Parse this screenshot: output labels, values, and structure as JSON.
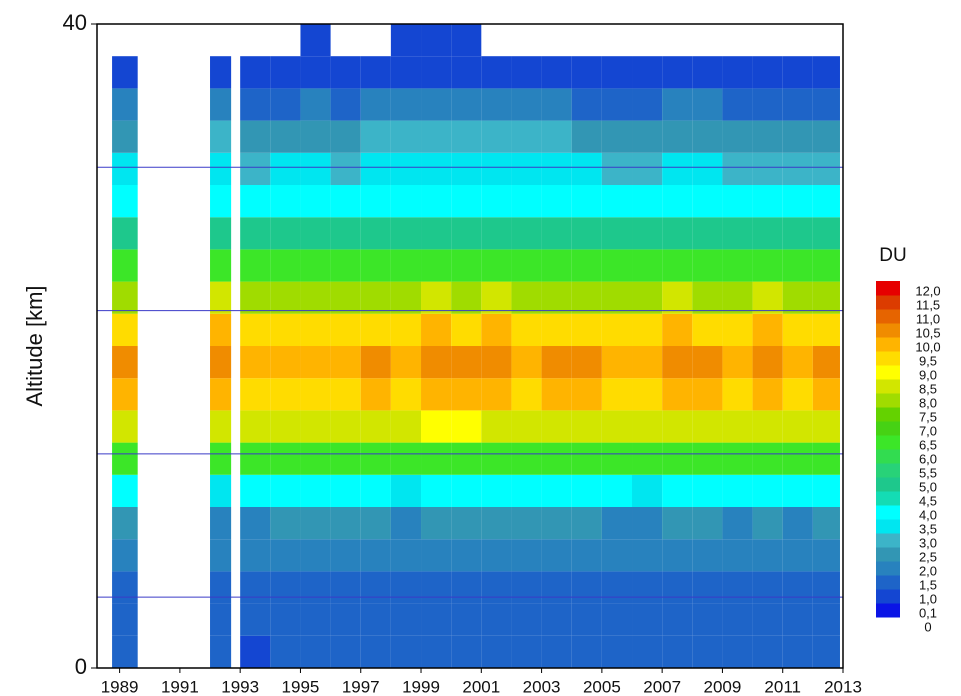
{
  "chart_data": {
    "type": "heatmap",
    "y_label": "Altitude [km]",
    "colorbar_title": "DU",
    "xlim": [
      1988.25,
      2013
    ],
    "xticks": [
      1989,
      1991,
      1993,
      1995,
      1997,
      1999,
      2001,
      2003,
      2005,
      2007,
      2009,
      2011,
      2013
    ],
    "ylim": [
      0,
      40
    ],
    "yticks": [
      0,
      40
    ],
    "grid_lines": [
      4.4,
      13.3,
      22.2,
      31.1
    ],
    "grid_color": "#3a3ac8",
    "y_bins": [
      0,
      2,
      4,
      6,
      8,
      10,
      12,
      14,
      16,
      18,
      20,
      22,
      24,
      26,
      28,
      30,
      32,
      34,
      36,
      38,
      40
    ],
    "x_ranges": [
      [
        1988.75,
        1989.6
      ],
      [
        1992.0,
        1992.7
      ],
      [
        1993.0,
        1994
      ],
      [
        1994,
        1995
      ],
      [
        1995,
        1996
      ],
      [
        1996,
        1997
      ],
      [
        1997,
        1998
      ],
      [
        1998,
        1999
      ],
      [
        1999,
        2000
      ],
      [
        2000,
        2001
      ],
      [
        2001,
        2002
      ],
      [
        2002,
        2003
      ],
      [
        2003,
        2004
      ],
      [
        2004,
        2005
      ],
      [
        2005,
        2006
      ],
      [
        2006,
        2007
      ],
      [
        2007,
        2008
      ],
      [
        2008,
        2009
      ],
      [
        2009,
        2010
      ],
      [
        2010,
        2011
      ],
      [
        2011,
        2012
      ],
      [
        2012,
        2012.9
      ]
    ],
    "z": [
      [
        1.0,
        1.2,
        1.4,
        1.6,
        2.1,
        3.7,
        6.3,
        8.3,
        9.6,
        10.2,
        9.4,
        7.9,
        6.3,
        4.8,
        3.7,
        3.0,
        2.4,
        1.5,
        0.6,
        null
      ],
      [
        1.0,
        1.2,
        1.3,
        1.5,
        1.9,
        3.4,
        6.0,
        8.2,
        9.5,
        10.3,
        9.6,
        8.1,
        6.4,
        4.9,
        3.8,
        3.1,
        2.5,
        1.6,
        0.7,
        null
      ],
      [
        0.9,
        1.1,
        1.3,
        1.5,
        1.9,
        3.5,
        6.1,
        8.1,
        9.2,
        9.7,
        9.1,
        7.7,
        6.1,
        4.7,
        3.6,
        2.9,
        2.3,
        1.3,
        0.5,
        null
      ],
      [
        1.0,
        1.2,
        1.4,
        1.6,
        2.0,
        3.6,
        6.2,
        8.2,
        9.3,
        9.8,
        9.2,
        7.8,
        6.2,
        4.8,
        3.7,
        3.0,
        2.4,
        1.4,
        0.6,
        null
      ],
      [
        1.0,
        1.2,
        1.3,
        1.5,
        2.0,
        3.5,
        6.1,
        8.3,
        9.4,
        9.9,
        9.3,
        7.9,
        6.2,
        4.8,
        3.7,
        3.0,
        2.4,
        1.5,
        0.6,
        0.1
      ],
      [
        1.1,
        1.2,
        1.4,
        1.6,
        2.1,
        3.7,
        6.3,
        8.2,
        9.2,
        9.6,
        9.0,
        7.6,
        6.0,
        4.7,
        3.6,
        2.9,
        2.3,
        1.3,
        0.5,
        null
      ],
      [
        1.0,
        1.2,
        1.4,
        1.6,
        2.0,
        3.6,
        6.2,
        8.4,
        9.5,
        10.0,
        9.4,
        7.9,
        6.3,
        4.9,
        3.8,
        3.1,
        2.5,
        1.5,
        0.6,
        null
      ],
      [
        1.0,
        1.1,
        1.3,
        1.5,
        1.9,
        3.4,
        6.0,
        8.1,
        9.3,
        9.8,
        9.2,
        7.8,
        6.2,
        4.8,
        3.7,
        3.0,
        2.5,
        1.6,
        0.7,
        0.1
      ],
      [
        1.0,
        1.2,
        1.4,
        1.6,
        2.0,
        3.6,
        6.3,
        8.5,
        9.8,
        10.4,
        9.6,
        8.0,
        6.4,
        4.9,
        3.8,
        3.1,
        2.6,
        1.7,
        0.8,
        0.1
      ],
      [
        1.1,
        1.3,
        1.4,
        1.6,
        2.1,
        3.7,
        6.4,
        8.5,
        9.6,
        10.1,
        9.4,
        7.9,
        6.3,
        4.8,
        3.7,
        3.1,
        2.6,
        1.7,
        0.8,
        0.1
      ],
      [
        1.0,
        1.2,
        1.4,
        1.6,
        2.0,
        3.6,
        6.2,
        8.4,
        9.7,
        10.3,
        9.5,
        8.0,
        6.3,
        4.9,
        3.8,
        3.1,
        2.6,
        1.7,
        0.7,
        null
      ],
      [
        1.0,
        1.2,
        1.3,
        1.5,
        2.0,
        3.5,
        6.1,
        8.2,
        9.4,
        9.9,
        9.3,
        7.9,
        6.2,
        4.8,
        3.7,
        3.0,
        2.5,
        1.6,
        0.7,
        null
      ],
      [
        1.0,
        1.2,
        1.4,
        1.6,
        2.0,
        3.6,
        6.2,
        8.3,
        9.5,
        10.0,
        9.3,
        7.8,
        6.2,
        4.8,
        3.7,
        3.0,
        2.5,
        1.6,
        0.7,
        null
      ],
      [
        1.0,
        1.2,
        1.4,
        1.6,
        2.1,
        3.7,
        6.3,
        8.4,
        9.6,
        10.1,
        9.4,
        7.9,
        6.2,
        4.8,
        3.7,
        3.0,
        2.4,
        1.4,
        0.6,
        null
      ],
      [
        1.0,
        1.2,
        1.3,
        1.5,
        1.9,
        3.5,
        6.1,
        8.2,
        9.4,
        9.9,
        9.2,
        7.7,
        6.1,
        4.7,
        3.6,
        2.9,
        2.3,
        1.4,
        0.5,
        null
      ],
      [
        1.0,
        1.1,
        1.3,
        1.5,
        1.9,
        3.4,
        6.0,
        8.1,
        9.3,
        9.8,
        9.1,
        7.6,
        6.0,
        4.6,
        3.5,
        2.8,
        2.2,
        1.2,
        0.4,
        null
      ],
      [
        1.0,
        1.2,
        1.4,
        1.6,
        2.0,
        3.6,
        6.3,
        8.4,
        9.7,
        10.3,
        9.5,
        8.0,
        6.3,
        4.9,
        3.8,
        3.0,
        2.4,
        1.5,
        0.6,
        null
      ],
      [
        1.0,
        1.2,
        1.4,
        1.6,
        2.0,
        3.6,
        6.2,
        8.3,
        9.6,
        10.2,
        9.4,
        7.9,
        6.2,
        4.8,
        3.7,
        3.0,
        2.4,
        1.5,
        0.6,
        null
      ],
      [
        1.0,
        1.2,
        1.3,
        1.5,
        1.9,
        3.5,
        6.0,
        8.1,
        9.3,
        9.7,
        9.1,
        7.6,
        6.0,
        4.6,
        3.5,
        2.8,
        2.2,
        1.3,
        0.5,
        null
      ],
      [
        1.0,
        1.2,
        1.4,
        1.6,
        2.0,
        3.6,
        6.3,
        8.4,
        9.8,
        10.4,
        9.6,
        8.0,
        6.3,
        4.8,
        3.7,
        2.9,
        2.3,
        1.3,
        0.5,
        null
      ],
      [
        1.0,
        1.2,
        1.3,
        1.5,
        1.9,
        3.5,
        6.1,
        8.2,
        9.4,
        9.8,
        9.1,
        7.6,
        6.0,
        4.6,
        3.5,
        2.8,
        2.2,
        1.2,
        0.4,
        null
      ],
      [
        1.0,
        1.2,
        1.4,
        1.6,
        2.0,
        3.6,
        6.2,
        8.3,
        9.5,
        10.0,
        9.3,
        7.8,
        6.1,
        4.7,
        3.6,
        2.9,
        2.3,
        1.4,
        0.5,
        null
      ]
    ],
    "levels": [
      0,
      {
        "value": 0.1,
        "label": "0,1"
      },
      {
        "value": 1.0,
        "label": "1,0"
      },
      {
        "value": 1.5,
        "label": "1,5"
      },
      {
        "value": 2.0,
        "label": "2,0"
      },
      {
        "value": 2.5,
        "label": "2,5"
      },
      {
        "value": 3.0,
        "label": "3,0"
      },
      {
        "value": 3.5,
        "label": "3,5"
      },
      {
        "value": 4.0,
        "label": "4,0"
      },
      {
        "value": 4.5,
        "label": "4,5"
      },
      {
        "value": 5.0,
        "label": "5,0"
      },
      {
        "value": 5.5,
        "label": "5,5"
      },
      {
        "value": 6.0,
        "label": "6,0"
      },
      {
        "value": 6.5,
        "label": "6,5"
      },
      {
        "value": 7.0,
        "label": "7,0"
      },
      {
        "value": 7.5,
        "label": "7,5"
      },
      {
        "value": 8.0,
        "label": "8,0"
      },
      {
        "value": 8.5,
        "label": "8,5"
      },
      {
        "value": 9.0,
        "label": "9,0"
      },
      {
        "value": 9.5,
        "label": "9,5"
      },
      {
        "value": 10.0,
        "label": "10,0"
      },
      {
        "value": 10.5,
        "label": "10,5"
      },
      {
        "value": 11.0,
        "label": "11,0"
      },
      {
        "value": 11.5,
        "label": "11,5"
      },
      {
        "value": 12.0,
        "label": "12,0"
      }
    ],
    "level_colors": [
      "#0a14e6",
      "#1446d2",
      "#1e64c8",
      "#2882be",
      "#3296b4",
      "#3cb4c8",
      "#00e6f0",
      "#00ffff",
      "#14dcb4",
      "#1ec88c",
      "#28d278",
      "#32dc50",
      "#3ce628",
      "#46d214",
      "#64d200",
      "#a0dc00",
      "#d2e600",
      "#ffff00",
      "#ffdc00",
      "#ffb400",
      "#f08c00",
      "#e66400",
      "#dc3c00",
      "#e60000"
    ]
  }
}
